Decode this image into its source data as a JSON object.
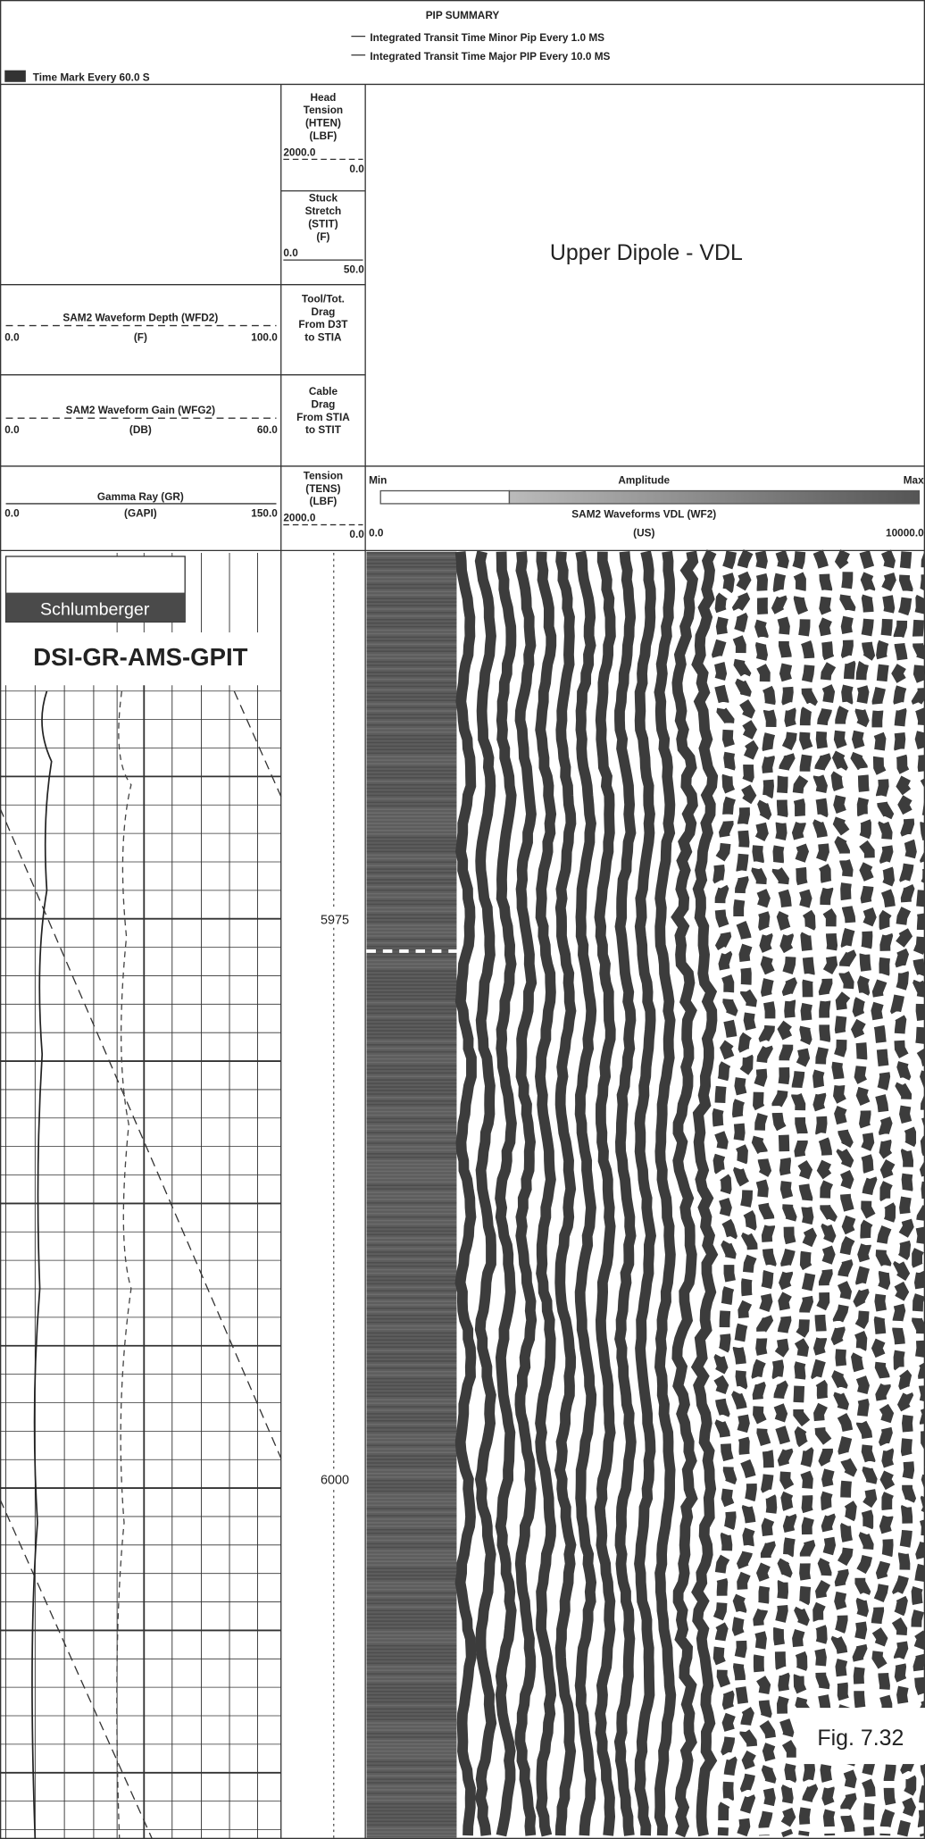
{
  "header": {
    "title": "PIP SUMMARY",
    "minor_pip": "Integrated Transit Time Minor Pip Every  1.0 MS",
    "major_pip": "Integrated Transit Time Major PIP Every  10.0 MS",
    "time_mark": "Time Mark Every  60.0 S"
  },
  "left_tracks": [
    {
      "name": "SAM2 Waveform Depth (WFD2)",
      "unit": "(F)",
      "min": "0.0",
      "max": "100.0"
    },
    {
      "name": "SAM2 Waveform Gain (WFG2)",
      "unit": "(DB)",
      "min": "0.0",
      "max": "60.0"
    },
    {
      "name": "Gamma Ray (GR)",
      "unit": "(GAPI)",
      "min": "0.0",
      "max": "150.0"
    }
  ],
  "middle_tracks": [
    {
      "lines": [
        "Head",
        "Tension",
        "(HTEN)",
        "(LBF)"
      ],
      "left": "2000.0",
      "right": "0.0"
    },
    {
      "lines": [
        "Stuck",
        "Stretch",
        "(STIT)",
        "(F)"
      ],
      "left": "0.0",
      "right": "50.0"
    },
    {
      "lines": [
        "Tool/Tot.",
        "Drag",
        "From D3T",
        "to STIA"
      ]
    },
    {
      "lines": [
        "Cable",
        "Drag",
        "From STIA",
        "to STIT"
      ]
    },
    {
      "lines": [
        "Tension",
        "(TENS)",
        "(LBF)"
      ],
      "left": "2000.0",
      "right": "0.0"
    }
  ],
  "vdl": {
    "title": "Upper Dipole - VDL",
    "amp_min": "Min",
    "amp_label": "Amplitude",
    "amp_max": "Max",
    "name": "SAM2 Waveforms VDL (WF2)",
    "unit": "(US)",
    "min": "0.0",
    "max": "10000.0"
  },
  "depth_labels": [
    "5975",
    "6000"
  ],
  "logo": "Schlumberger",
  "tool_string": "DSI-GR-AMS-GPIT",
  "figure_label": "Fig. 7.32"
}
